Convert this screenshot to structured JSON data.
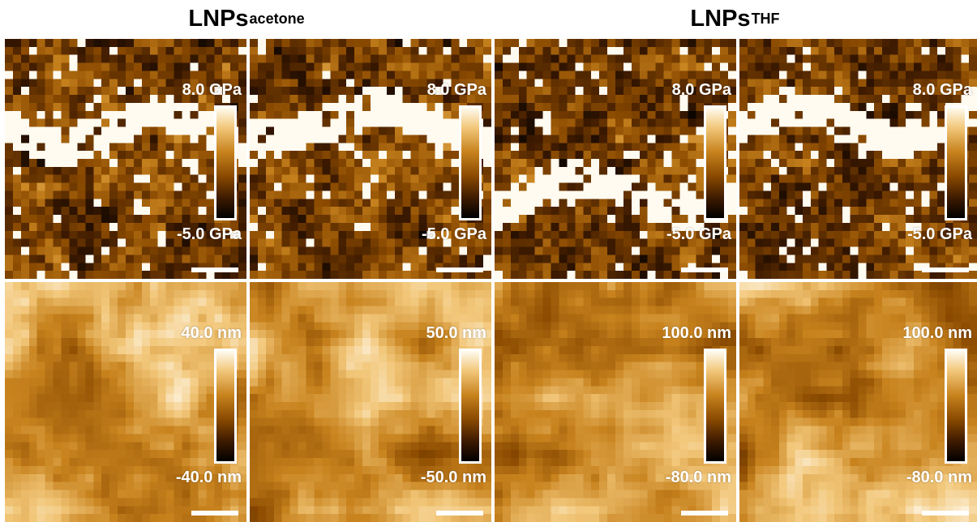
{
  "headers": {
    "left": {
      "main": "LNPs",
      "sub": "acetone"
    },
    "right": {
      "main": "LNPs",
      "sub": "THF"
    }
  },
  "colormap": [
    "#000000",
    "#3d1a00",
    "#8a4a00",
    "#c8831e",
    "#f2c77a",
    "#fffbf0"
  ],
  "panels": [
    {
      "id": "modulus-acetone-1",
      "type": "modulus",
      "max": "8.0 GPa",
      "min": "-5.0 GPa"
    },
    {
      "id": "modulus-acetone-2",
      "type": "modulus",
      "max": "8.0 GPa",
      "min": "-5.0 GPa"
    },
    {
      "id": "modulus-thf-1",
      "type": "modulus",
      "max": "8.0 GPa",
      "min": "-5.0 GPa"
    },
    {
      "id": "modulus-thf-2",
      "type": "modulus",
      "max": "8.0 GPa",
      "min": "-5.0 GPa"
    },
    {
      "id": "height-acetone-1",
      "type": "height",
      "max": "40.0 nm",
      "min": "-40.0 nm"
    },
    {
      "id": "height-acetone-2",
      "type": "height",
      "max": "50.0 nm",
      "min": "-50.0 nm"
    },
    {
      "id": "height-thf-1",
      "type": "height",
      "max": "100.0 nm",
      "min": "-80.0 nm"
    },
    {
      "id": "height-thf-2",
      "type": "height",
      "max": "100.0 nm",
      "min": "-80.0 nm"
    }
  ]
}
